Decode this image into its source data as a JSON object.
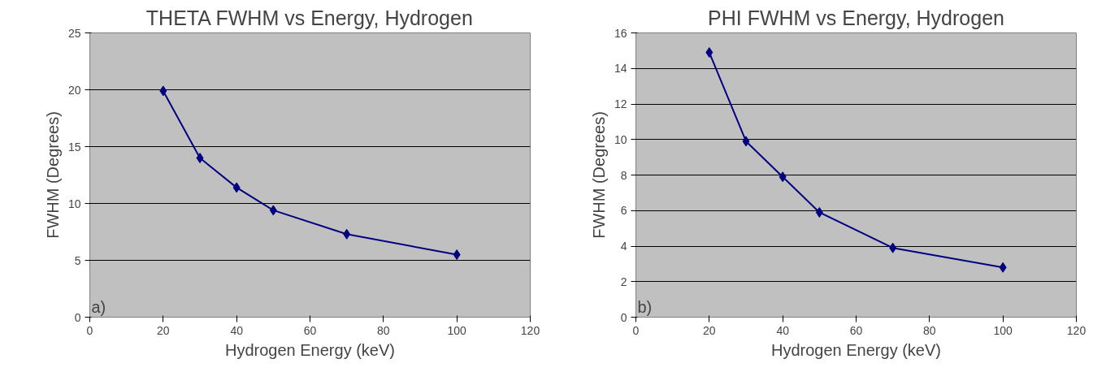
{
  "chart_data": [
    {
      "type": "line",
      "title": "THETA FWHM vs Energy, Hydrogen",
      "xlabel": "Hydrogen Energy (keV)",
      "ylabel": "FWHM (Degrees)",
      "x": [
        20,
        30,
        40,
        50,
        70,
        100
      ],
      "series": [
        {
          "color": "#000080",
          "values": [
            19.9,
            14,
            11.4,
            9.4,
            7.3,
            5.5
          ]
        }
      ],
      "xlim": [
        0,
        120
      ],
      "xticks": [
        0,
        20,
        40,
        60,
        80,
        100,
        120
      ],
      "ylim": [
        0,
        25
      ],
      "yticks": [
        0,
        5,
        10,
        15,
        20,
        25
      ],
      "grid": "y",
      "marker": "diamond",
      "line_style": "solid",
      "annotations": [
        "a)"
      ]
    },
    {
      "type": "line",
      "title": "PHI FWHM vs Energy, Hydrogen",
      "xlabel": "Hydrogen Energy (keV)",
      "ylabel": "FWHM (Degrees)",
      "x": [
        20,
        30,
        40,
        50,
        70,
        100
      ],
      "series": [
        {
          "color": "#000080",
          "values": [
            14.9,
            9.9,
            7.9,
            5.9,
            3.9,
            2.8
          ]
        }
      ],
      "xlim": [
        0,
        120
      ],
      "xticks": [
        0,
        20,
        40,
        60,
        80,
        100,
        120
      ],
      "ylim": [
        0,
        16
      ],
      "yticks": [
        0,
        2,
        4,
        6,
        8,
        10,
        12,
        14,
        16
      ],
      "grid": "y",
      "marker": "diamond",
      "line_style": "solid",
      "annotations": [
        "b)"
      ]
    }
  ]
}
